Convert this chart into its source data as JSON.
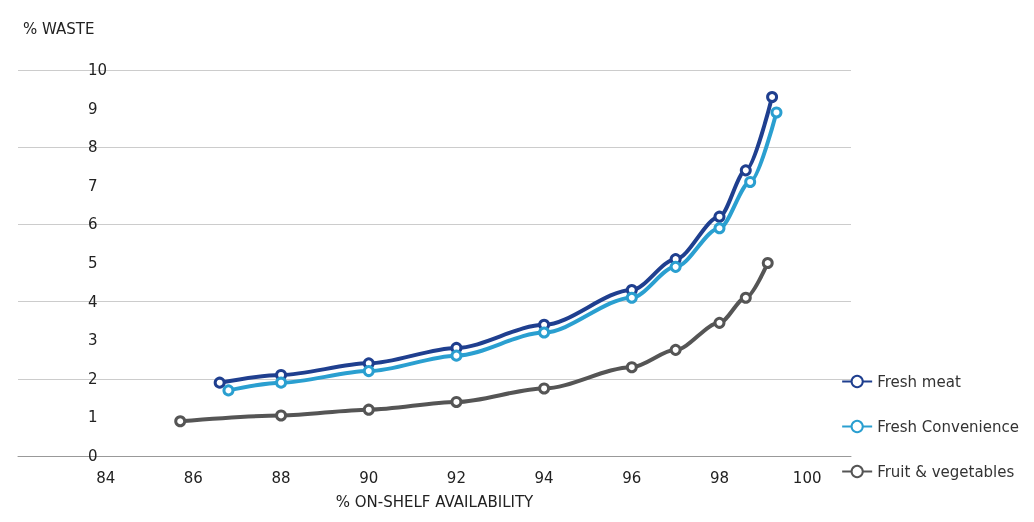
{
  "chart_data": {
    "type": "line",
    "xlabel": "% ON-SHELF AVAILABILITY",
    "ylabel": "% WASTE",
    "xlim": [
      82,
      101
    ],
    "xticks": [
      84,
      86,
      88,
      90,
      92,
      94,
      96,
      98,
      100
    ],
    "ylim": [
      0,
      10
    ],
    "yticks": [
      0,
      1,
      2,
      3,
      4,
      5,
      6,
      7,
      8,
      9,
      10
    ],
    "grid": "y",
    "legend": "bottom right",
    "marker": "circle",
    "line_style": "solid",
    "series": [
      {
        "name": "Fresh meat",
        "color": "#1f3f8f",
        "x": [
          86.6,
          88,
          90,
          92,
          94,
          96,
          97,
          98,
          98.6,
          99.2
        ],
        "values": [
          1.9,
          2.1,
          2.4,
          2.8,
          3.4,
          4.3,
          5.1,
          6.2,
          7.4,
          9.3
        ]
      },
      {
        "name": "Fresh Convenience",
        "color": "#2a9fd0",
        "x": [
          86.8,
          88,
          90,
          92,
          94,
          96,
          97,
          98,
          98.7,
          99.3
        ],
        "values": [
          1.7,
          1.9,
          2.2,
          2.6,
          3.2,
          4.1,
          4.9,
          5.9,
          7.1,
          8.9
        ]
      },
      {
        "name": "Fruit & vegetables",
        "color": "#555555",
        "x": [
          85.7,
          88,
          90,
          92,
          94,
          96,
          97,
          98,
          98.6,
          99.1
        ],
        "values": [
          0.9,
          1.05,
          1.2,
          1.4,
          1.75,
          2.3,
          2.75,
          3.45,
          4.1,
          5.0
        ]
      }
    ]
  }
}
